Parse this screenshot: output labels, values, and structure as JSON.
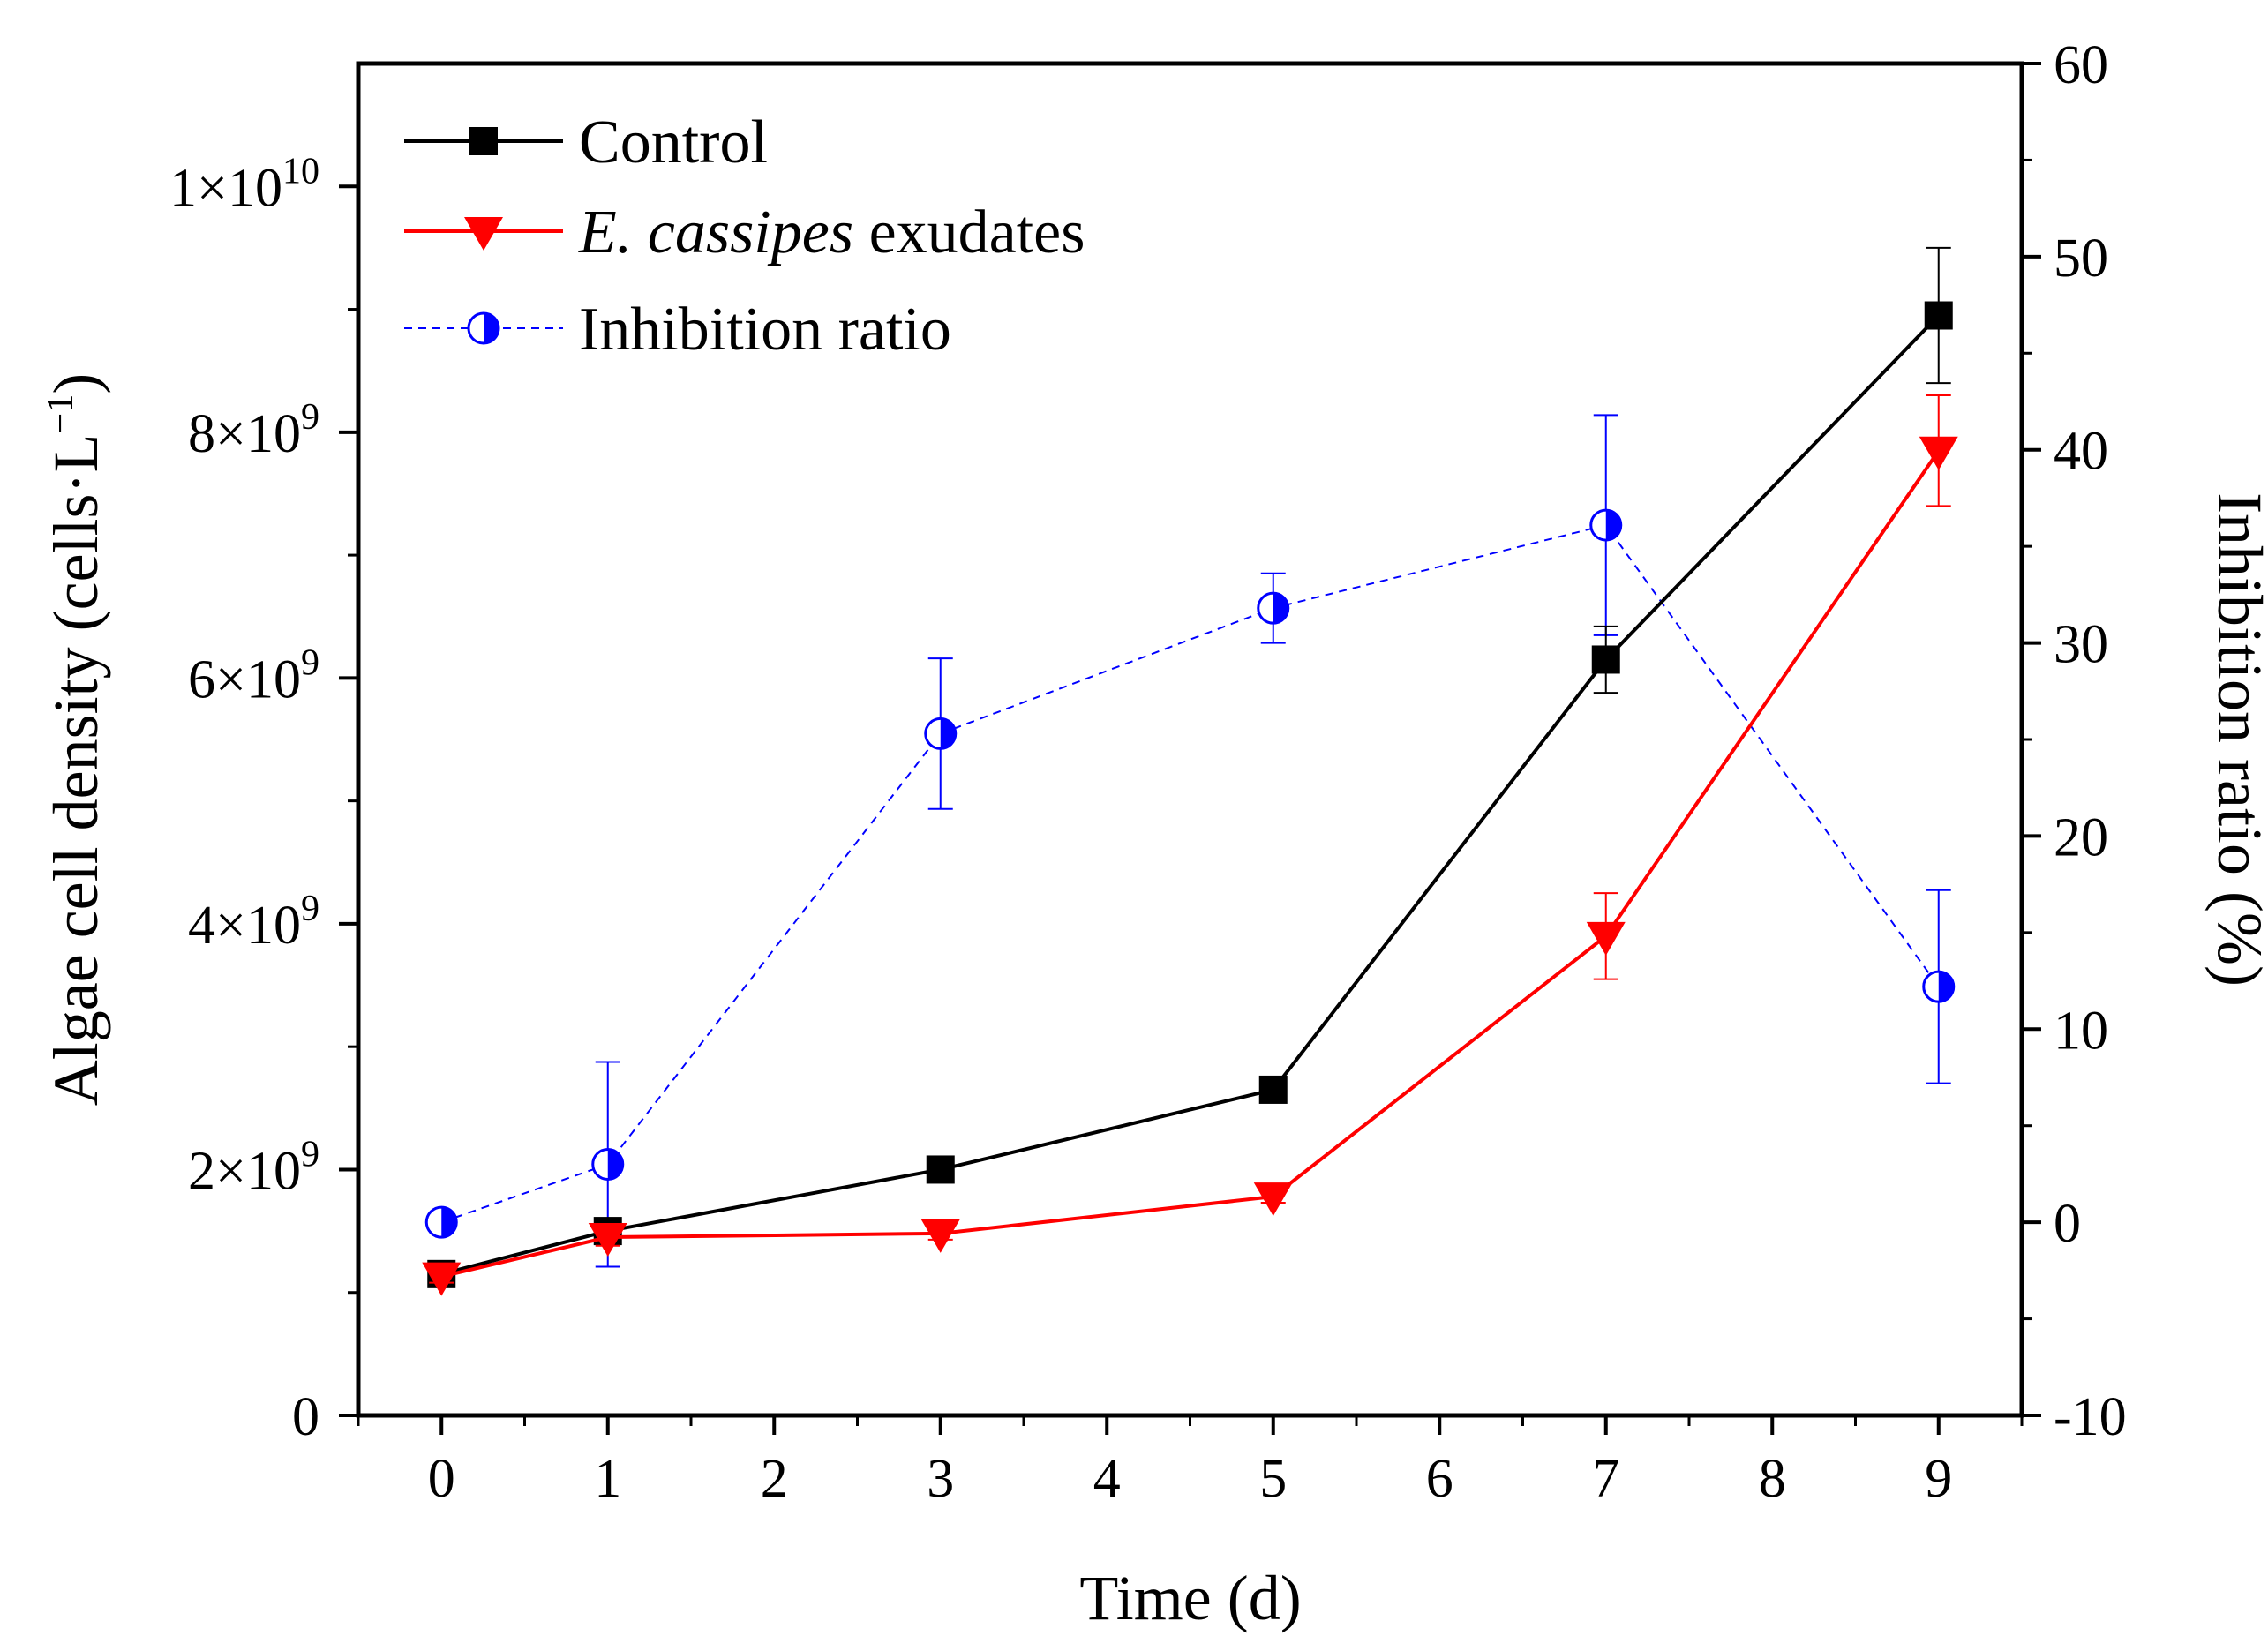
{
  "chart_data": {
    "type": "line",
    "x": [
      0,
      1,
      3,
      5,
      7,
      9
    ],
    "xlabel": "Time (d)",
    "xlim": [
      -0.5,
      9.5
    ],
    "xticks": [
      0,
      1,
      2,
      3,
      4,
      5,
      6,
      7,
      8,
      9
    ],
    "xtick_labels": [
      "0",
      "1",
      "2",
      "3",
      "4",
      "5",
      "6",
      "7",
      "8",
      "9"
    ],
    "left_axis": {
      "label": "Algae cell density (cells·L",
      "label_sup": "−1",
      "label_close": ")",
      "ylim": [
        0,
        11000000000
      ],
      "ticks": [
        0,
        2000000000,
        4000000000,
        6000000000,
        8000000000,
        10000000000
      ],
      "tick_labels": [
        {
          "base": "0",
          "exp": ""
        },
        {
          "base": "2×10",
          "exp": "9"
        },
        {
          "base": "4×10",
          "exp": "9"
        },
        {
          "base": "6×10",
          "exp": "9"
        },
        {
          "base": "8×10",
          "exp": "9"
        },
        {
          "base": "1×10",
          "exp": "10"
        }
      ]
    },
    "right_axis": {
      "label": "Inhibition ratio (%)",
      "ylim": [
        -10,
        60
      ],
      "ticks": [
        -10,
        0,
        10,
        20,
        30,
        40,
        50,
        60
      ],
      "tick_labels": [
        "-10",
        "0",
        "10",
        "20",
        "30",
        "40",
        "50",
        "60"
      ]
    },
    "series": [
      {
        "name": "Control",
        "axis": "left",
        "color": "#000000",
        "marker": "square",
        "line": "solid",
        "values": [
          1150000000,
          1500000000,
          2000000000,
          2650000000,
          6150000000,
          8950000000
        ],
        "errors": [
          60000000,
          80000000,
          60000000,
          60000000,
          270000000,
          550000000
        ]
      },
      {
        "name": "E. cassipes exudates",
        "name_italic": "E. cassipes",
        "name_rest": " exudates",
        "axis": "left",
        "color": "#ff0000",
        "marker": "triangle-down",
        "line": "solid",
        "values": [
          1130000000,
          1450000000,
          1480000000,
          1780000000,
          3900000000,
          7850000000
        ],
        "errors": [
          50000000,
          70000000,
          50000000,
          50000000,
          350000000,
          450000000
        ]
      },
      {
        "name": "Inhibition ratio",
        "axis": "right",
        "color": "#0000ff",
        "marker": "half-filled-circle",
        "line": "dashed",
        "values": [
          0,
          3.0,
          25.3,
          31.8,
          36.1,
          12.2
        ],
        "errors": [
          0,
          5.3,
          3.9,
          1.8,
          5.7,
          5.0
        ]
      }
    ],
    "legend": {
      "position": "top-left"
    }
  }
}
